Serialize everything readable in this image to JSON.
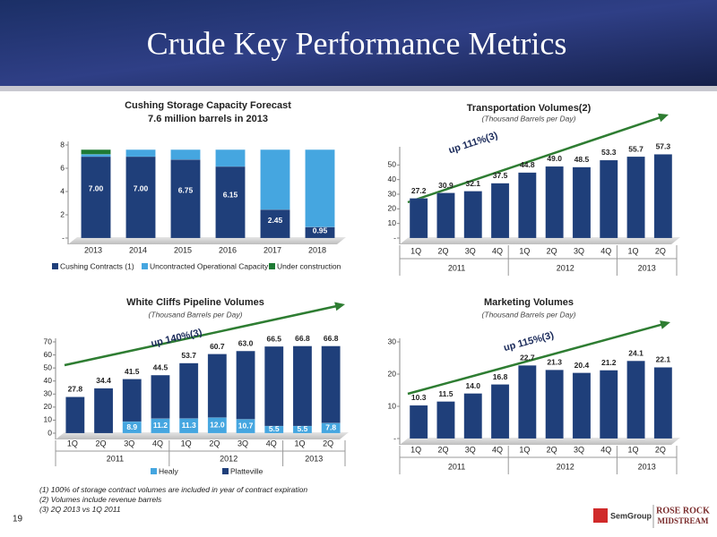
{
  "slide_title": "Crude Key Performance Metrics",
  "page_number": "19",
  "footnotes": [
    "(1)  100% of storage contract volumes are included in year of contract expiration",
    "(2)  Volumes include revenue barrels",
    "(3)  2Q 2013 vs 1Q 2011"
  ],
  "logos": [
    "SemGroup",
    "ROSE ROCK",
    "MIDSTREAM"
  ],
  "chart_data": [
    {
      "type": "bar",
      "title": "Cushing Storage Capacity Forecast",
      "subtitle": "7.6 million barrels in 2013",
      "categories": [
        "2013",
        "2014",
        "2015",
        "2016",
        "2017",
        "2018"
      ],
      "series": [
        {
          "name": "Cushing Contracts (1)",
          "color": "#1f3f7a",
          "values": [
            7.0,
            7.0,
            6.75,
            6.15,
            2.45,
            0.95
          ],
          "value_labels": [
            "7.00",
            "7.00",
            "6.75",
            "6.15",
            "2.45",
            "0.95"
          ]
        },
        {
          "name": "Uncontracted Operational Capacity",
          "color": "#45a6e0",
          "values": [
            0.2,
            0.6,
            0.85,
            1.45,
            5.15,
            6.65
          ]
        },
        {
          "name": "Under construction",
          "color": "#1e7a34",
          "values": [
            0.4,
            0,
            0,
            0,
            0,
            0
          ]
        }
      ],
      "ylim": [
        0,
        8
      ],
      "yticks": [
        {
          "value": 0,
          "label": "-"
        },
        2,
        4,
        6,
        8
      ],
      "legend": "bottom"
    },
    {
      "type": "bar",
      "title": "Transportation Volumes(2)",
      "subtitle": "(Thousand Barrels per Day)",
      "categories": [
        "1Q",
        "2Q",
        "3Q",
        "4Q",
        "1Q",
        "2Q",
        "3Q",
        "4Q",
        "1Q",
        "2Q"
      ],
      "groups": [
        "2011",
        "2012",
        "2013"
      ],
      "series": [
        {
          "name": "Transportation Volumes",
          "color": "#1f3f7a",
          "values": [
            27.2,
            30.9,
            32.1,
            37.5,
            44.8,
            49.0,
            48.5,
            53.3,
            55.7,
            57.3
          ],
          "value_labels": [
            "27.2",
            "30.9",
            "32.1",
            "37.5",
            "44.8",
            "49.0",
            "48.5",
            "53.3",
            "55.7",
            "57.3"
          ]
        }
      ],
      "ylim": [
        0,
        60
      ],
      "yticks": [
        {
          "value": 0,
          "label": "-"
        },
        10,
        20,
        30,
        40,
        50
      ],
      "annotation": "up 111%(3)"
    },
    {
      "type": "bar",
      "title": "White Cliffs Pipeline Volumes",
      "subtitle": "(Thousand Barrels per Day)",
      "categories": [
        "1Q",
        "2Q",
        "3Q",
        "4Q",
        "1Q",
        "2Q",
        "3Q",
        "4Q",
        "1Q",
        "2Q"
      ],
      "groups": [
        "2011",
        "2012",
        "2013"
      ],
      "series": [
        {
          "name": "Healy",
          "color": "#45a6e0",
          "values": [
            0,
            0,
            8.9,
            11.2,
            11.3,
            12.0,
            10.7,
            5.5,
            5.5,
            7.8
          ],
          "value_labels": [
            null,
            null,
            "8.9",
            "11.2",
            "11.3",
            "12.0",
            "10.7",
            "5.5",
            "5.5",
            "7.8"
          ]
        },
        {
          "name": "Platteville",
          "color": "#1f3f7a",
          "values": [
            27.8,
            34.4,
            32.6,
            33.3,
            42.4,
            48.7,
            52.3,
            61.0,
            61.3,
            59.0
          ]
        }
      ],
      "totals": {
        "values": [
          27.8,
          34.4,
          41.5,
          44.5,
          53.7,
          60.7,
          63.0,
          66.5,
          66.8,
          66.8
        ],
        "value_labels": [
          "27.8",
          "34.4",
          "41.5",
          "44.5",
          "53.7",
          "60.7",
          "63.0",
          "66.5",
          "66.8",
          "66.8"
        ]
      },
      "ylim": [
        0,
        70
      ],
      "yticks": [
        0,
        10,
        20,
        30,
        40,
        50,
        60,
        70
      ],
      "legend": "bottom",
      "annotation": "up 140%(3)"
    },
    {
      "type": "bar",
      "title": "Marketing Volumes",
      "subtitle": "(Thousand Barrels per Day)",
      "categories": [
        "1Q",
        "2Q",
        "3Q",
        "4Q",
        "1Q",
        "2Q",
        "3Q",
        "4Q",
        "1Q",
        "2Q"
      ],
      "groups": [
        "2011",
        "2012",
        "2013"
      ],
      "series": [
        {
          "name": "Marketing Volumes",
          "color": "#1f3f7a",
          "values": [
            10.3,
            11.5,
            14.0,
            16.8,
            22.7,
            21.3,
            20.4,
            21.2,
            24.1,
            22.1
          ],
          "value_labels": [
            "10.3",
            "11.5",
            "14.0",
            "16.8",
            "22.7",
            "21.3",
            "20.4",
            "21.2",
            "24.1",
            "22.1"
          ]
        }
      ],
      "ylim": [
        0,
        30
      ],
      "yticks": [
        {
          "value": 0,
          "label": "-"
        },
        10,
        20,
        30
      ],
      "annotation": "up 115%(3)"
    }
  ]
}
